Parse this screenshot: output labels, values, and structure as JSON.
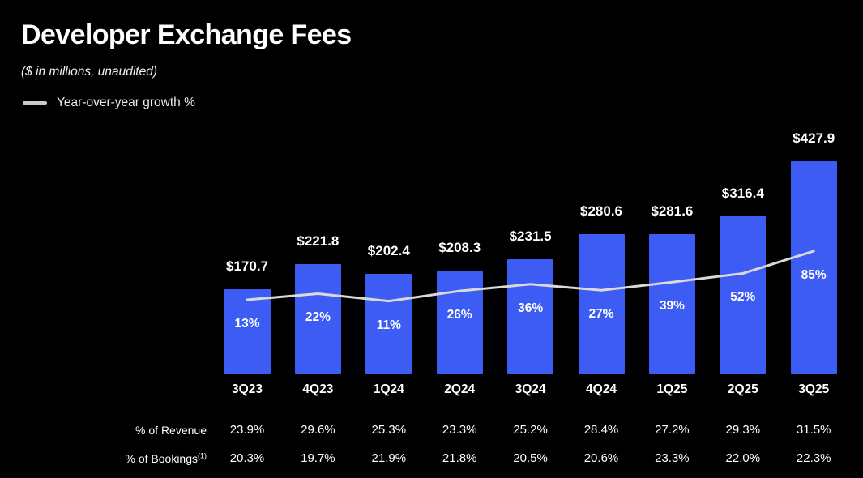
{
  "slide": {
    "title": "Developer Exchange Fees",
    "subtitle": "($ in millions, unaudited)",
    "legend": {
      "label": "Year-over-year growth %"
    }
  },
  "chart_data": {
    "type": "bar",
    "title": "Developer Exchange Fees",
    "subtitle": "($ in millions, unaudited)",
    "categories": [
      "3Q23",
      "4Q23",
      "1Q24",
      "2Q24",
      "3Q24",
      "4Q24",
      "1Q25",
      "2Q25",
      "3Q25"
    ],
    "series": [
      {
        "name": "Developer Exchange Fees ($M)",
        "type": "bar",
        "values": [
          170.7,
          221.8,
          202.4,
          208.3,
          231.5,
          280.6,
          281.6,
          316.4,
          427.9
        ],
        "labels": [
          "$170.7",
          "$221.8",
          "$202.4",
          "$208.3",
          "$231.5",
          "$280.6",
          "$281.6",
          "$316.4",
          "$427.9"
        ]
      },
      {
        "name": "Year-over-year growth %",
        "type": "line",
        "values": [
          13,
          22,
          11,
          26,
          36,
          27,
          39,
          52,
          85
        ],
        "labels": [
          "13%",
          "22%",
          "11%",
          "26%",
          "36%",
          "27%",
          "39%",
          "52%",
          "85%"
        ]
      }
    ],
    "table_rows": [
      {
        "label": "% of Revenue",
        "sup": "",
        "values": [
          "23.9%",
          "29.6%",
          "25.3%",
          "23.3%",
          "25.2%",
          "28.4%",
          "27.2%",
          "29.3%",
          "31.5%"
        ]
      },
      {
        "label": "% of Bookings",
        "sup": "(1)",
        "values": [
          "20.3%",
          "19.7%",
          "21.9%",
          "21.8%",
          "20.5%",
          "20.6%",
          "23.3%",
          "22.0%",
          "22.3%"
        ]
      }
    ],
    "colors": {
      "background": "#000000",
      "bar": "#3d5cf4",
      "line": "#d9d9d9",
      "legend_dash": "#c9cccf",
      "text": "#ffffff"
    },
    "layout_hints": {
      "grid": false,
      "legend_position": "top-left",
      "value_labels": "above bars",
      "growth_labels": "inside bars, below line"
    }
  }
}
